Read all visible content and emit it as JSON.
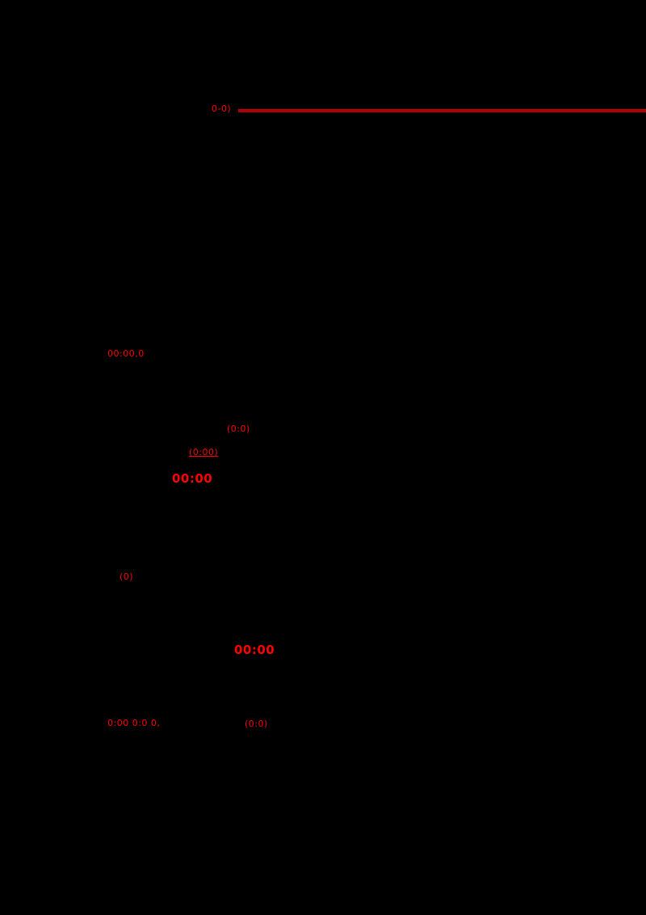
{
  "page": {
    "background_color": "#000000",
    "accent_red": "#ff0000",
    "rule_color": "#b00000"
  },
  "fragments": {
    "ref_top": "0-0)",
    "ref_a": "00:00,0",
    "ref_b": "(0:0)",
    "ref_c": "(0:00)",
    "ref_d": "00:00",
    "ref_e": "(0)",
    "ref_f": "00:00",
    "ref_g": "0:00 0:0 0,",
    "ref_h": "(0:0)"
  }
}
